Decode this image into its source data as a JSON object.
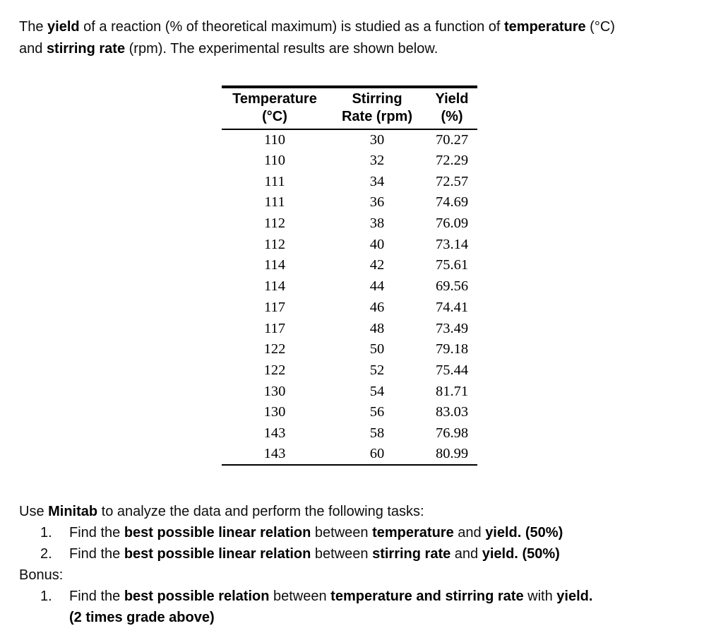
{
  "page": {
    "background": "#ffffff",
    "text_color": "#000000"
  },
  "intro": {
    "lines": [
      [
        {
          "t": "The ",
          "b": false
        },
        {
          "t": "yield",
          "b": true
        },
        {
          "t": " of a reaction (% of theoretical maximum) is studied as a function of ",
          "b": false
        },
        {
          "t": "temperature",
          "b": true
        },
        {
          "t": " (°C)",
          "b": false
        }
      ],
      [
        {
          "t": "and ",
          "b": false
        },
        {
          "t": "stirring rate",
          "b": true
        },
        {
          "t": " (rpm). The experimental results are shown below.",
          "b": false
        }
      ]
    ]
  },
  "table": {
    "columns": [
      {
        "line1": "Temperature",
        "line2": "(°C)"
      },
      {
        "line1": "Stirring",
        "line2": "Rate (rpm)"
      },
      {
        "line1": "Yield",
        "line2": "(%)"
      }
    ],
    "rows": [
      [
        "110",
        "30",
        "70.27"
      ],
      [
        "110",
        "32",
        "72.29"
      ],
      [
        "111",
        "34",
        "72.57"
      ],
      [
        "111",
        "36",
        "74.69"
      ],
      [
        "112",
        "38",
        "76.09"
      ],
      [
        "112",
        "40",
        "73.14"
      ],
      [
        "114",
        "42",
        "75.61"
      ],
      [
        "114",
        "44",
        "69.56"
      ],
      [
        "117",
        "46",
        "74.41"
      ],
      [
        "117",
        "48",
        "73.49"
      ],
      [
        "122",
        "50",
        "79.18"
      ],
      [
        "122",
        "52",
        "75.44"
      ],
      [
        "130",
        "54",
        "81.71"
      ],
      [
        "130",
        "56",
        "83.03"
      ],
      [
        "143",
        "58",
        "76.98"
      ],
      [
        "143",
        "60",
        "80.99"
      ]
    ]
  },
  "tasks": {
    "lead": [
      {
        "t": "Use ",
        "b": false
      },
      {
        "t": "Minitab",
        "b": true
      },
      {
        "t": " to analyze the data and perform the following tasks:",
        "b": false
      }
    ],
    "items": [
      {
        "number": "1.",
        "segments": [
          {
            "t": "Find the ",
            "b": false
          },
          {
            "t": "best possible linear relation",
            "b": true
          },
          {
            "t": " between ",
            "b": false
          },
          {
            "t": "temperature",
            "b": true
          },
          {
            "t": " and ",
            "b": false
          },
          {
            "t": "yield.",
            "b": true
          },
          {
            "t": " ",
            "b": false
          },
          {
            "t": "(50%)",
            "b": true
          }
        ]
      },
      {
        "number": "2.",
        "segments": [
          {
            "t": "Find the ",
            "b": false
          },
          {
            "t": "best possible linear relation",
            "b": true
          },
          {
            "t": " between ",
            "b": false
          },
          {
            "t": "stirring rate",
            "b": true
          },
          {
            "t": " and ",
            "b": false
          },
          {
            "t": "yield.",
            "b": true
          },
          {
            "t": " ",
            "b": false
          },
          {
            "t": "(50%)",
            "b": true
          }
        ]
      }
    ],
    "bonus_label": "Bonus:",
    "bonus_items": [
      {
        "number": "1.",
        "lines": [
          [
            {
              "t": "Find the ",
              "b": false
            },
            {
              "t": "best possible relation",
              "b": true
            },
            {
              "t": " between ",
              "b": false
            },
            {
              "t": "temperature and stirring rate",
              "b": true
            },
            {
              "t": " with ",
              "b": false
            },
            {
              "t": "yield.",
              "b": true
            }
          ],
          [
            {
              "t": "(2 times grade above)",
              "b": true
            }
          ]
        ]
      }
    ]
  }
}
